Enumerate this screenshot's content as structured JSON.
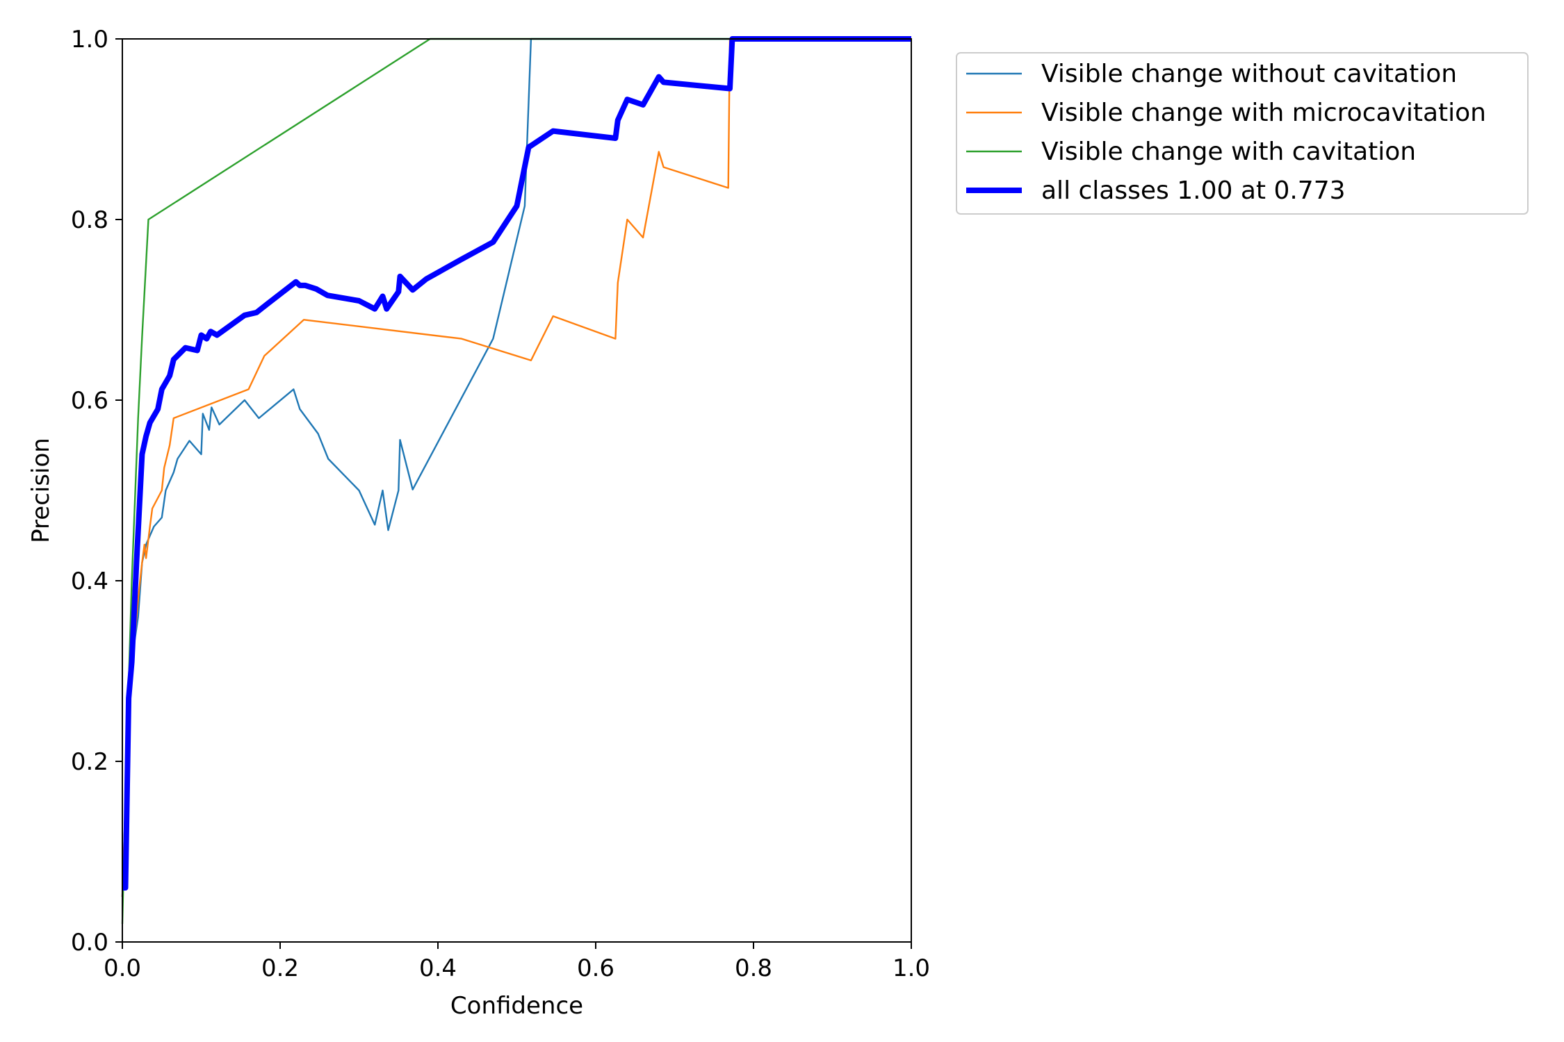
{
  "chart_data": {
    "type": "line",
    "title": "",
    "xlabel": "Confidence",
    "ylabel": "Precision",
    "xlim": [
      0,
      1
    ],
    "ylim": [
      0,
      1
    ],
    "xticks": [
      "0.0",
      "0.2",
      "0.4",
      "0.6",
      "0.8",
      "1.0"
    ],
    "yticks": [
      "0.0",
      "0.2",
      "0.4",
      "0.6",
      "0.8",
      "1.0"
    ],
    "grid": false,
    "legend_position": "outside-top-right",
    "series": [
      {
        "name": "Visible change without cavitation",
        "color": "#1f77b4",
        "points": [
          [
            0.0,
            0.05
          ],
          [
            0.005,
            0.18
          ],
          [
            0.01,
            0.28
          ],
          [
            0.015,
            0.33
          ],
          [
            0.02,
            0.36
          ],
          [
            0.025,
            0.42
          ],
          [
            0.03,
            0.44
          ],
          [
            0.04,
            0.46
          ],
          [
            0.05,
            0.47
          ],
          [
            0.055,
            0.5
          ],
          [
            0.065,
            0.52
          ],
          [
            0.07,
            0.535
          ],
          [
            0.085,
            0.555
          ],
          [
            0.1,
            0.54
          ],
          [
            0.102,
            0.585
          ],
          [
            0.11,
            0.567
          ],
          [
            0.113,
            0.592
          ],
          [
            0.123,
            0.573
          ],
          [
            0.155,
            0.6
          ],
          [
            0.173,
            0.58
          ],
          [
            0.217,
            0.612
          ],
          [
            0.225,
            0.59
          ],
          [
            0.248,
            0.563
          ],
          [
            0.261,
            0.535
          ],
          [
            0.3,
            0.5
          ],
          [
            0.32,
            0.462
          ],
          [
            0.33,
            0.5
          ],
          [
            0.337,
            0.456
          ],
          [
            0.35,
            0.5
          ],
          [
            0.352,
            0.556
          ],
          [
            0.368,
            0.501
          ],
          [
            0.47,
            0.668
          ],
          [
            0.51,
            0.815
          ],
          [
            0.518,
            1.0
          ],
          [
            1.0,
            1.0
          ]
        ]
      },
      {
        "name": "Visible change with microcavitation",
        "color": "#ff7f0e",
        "points": [
          [
            0.0,
            0.05
          ],
          [
            0.005,
            0.18
          ],
          [
            0.01,
            0.28
          ],
          [
            0.015,
            0.33
          ],
          [
            0.02,
            0.38
          ],
          [
            0.025,
            0.42
          ],
          [
            0.028,
            0.44
          ],
          [
            0.03,
            0.425
          ],
          [
            0.035,
            0.46
          ],
          [
            0.038,
            0.48
          ],
          [
            0.05,
            0.5
          ],
          [
            0.053,
            0.525
          ],
          [
            0.06,
            0.55
          ],
          [
            0.065,
            0.58
          ],
          [
            0.16,
            0.612
          ],
          [
            0.18,
            0.649
          ],
          [
            0.23,
            0.689
          ],
          [
            0.43,
            0.668
          ],
          [
            0.518,
            0.644
          ],
          [
            0.546,
            0.693
          ],
          [
            0.625,
            0.668
          ],
          [
            0.628,
            0.73
          ],
          [
            0.64,
            0.8
          ],
          [
            0.66,
            0.78
          ],
          [
            0.68,
            0.875
          ],
          [
            0.686,
            0.858
          ],
          [
            0.768,
            0.835
          ],
          [
            0.77,
            1.0
          ],
          [
            1.0,
            1.0
          ]
        ]
      },
      {
        "name": "Visible change with cavitation",
        "color": "#2ca02c",
        "points": [
          [
            0.0,
            0.02
          ],
          [
            0.005,
            0.2
          ],
          [
            0.012,
            0.4
          ],
          [
            0.02,
            0.58
          ],
          [
            0.025,
            0.67
          ],
          [
            0.033,
            0.8
          ],
          [
            0.39,
            1.0
          ],
          [
            1.0,
            1.0
          ]
        ]
      },
      {
        "name": "all classes 1.00 at 0.773",
        "color": "#0000ff",
        "bold": true,
        "points": [
          [
            0.0,
            0.06
          ],
          [
            0.004,
            0.06
          ],
          [
            0.008,
            0.27
          ],
          [
            0.012,
            0.31
          ],
          [
            0.018,
            0.42
          ],
          [
            0.025,
            0.54
          ],
          [
            0.03,
            0.56
          ],
          [
            0.035,
            0.575
          ],
          [
            0.045,
            0.59
          ],
          [
            0.05,
            0.612
          ],
          [
            0.06,
            0.627
          ],
          [
            0.065,
            0.645
          ],
          [
            0.08,
            0.658
          ],
          [
            0.095,
            0.655
          ],
          [
            0.1,
            0.672
          ],
          [
            0.107,
            0.668
          ],
          [
            0.112,
            0.676
          ],
          [
            0.12,
            0.672
          ],
          [
            0.155,
            0.694
          ],
          [
            0.17,
            0.697
          ],
          [
            0.183,
            0.706
          ],
          [
            0.22,
            0.731
          ],
          [
            0.225,
            0.727
          ],
          [
            0.232,
            0.727
          ],
          [
            0.246,
            0.723
          ],
          [
            0.26,
            0.716
          ],
          [
            0.3,
            0.71
          ],
          [
            0.32,
            0.701
          ],
          [
            0.33,
            0.715
          ],
          [
            0.335,
            0.701
          ],
          [
            0.35,
            0.72
          ],
          [
            0.352,
            0.737
          ],
          [
            0.368,
            0.722
          ],
          [
            0.385,
            0.734
          ],
          [
            0.43,
            0.756
          ],
          [
            0.47,
            0.775
          ],
          [
            0.5,
            0.815
          ],
          [
            0.515,
            0.88
          ],
          [
            0.546,
            0.898
          ],
          [
            0.625,
            0.89
          ],
          [
            0.628,
            0.91
          ],
          [
            0.64,
            0.933
          ],
          [
            0.66,
            0.927
          ],
          [
            0.68,
            0.958
          ],
          [
            0.686,
            0.952
          ],
          [
            0.77,
            0.945
          ],
          [
            0.773,
            1.0
          ],
          [
            1.0,
            1.0
          ]
        ]
      }
    ]
  }
}
